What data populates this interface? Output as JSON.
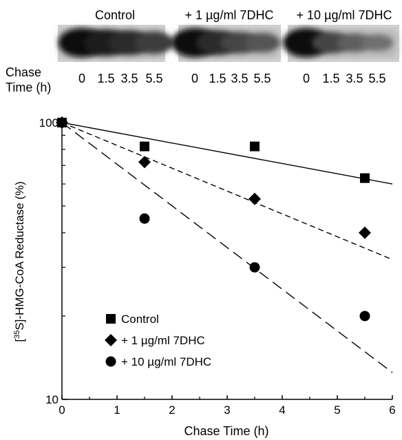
{
  "blot": {
    "groups": [
      {
        "label": "Control"
      },
      {
        "label": "+ 1 µg/ml 7DHC"
      },
      {
        "label": "+ 10 µg/ml 7DHC"
      }
    ],
    "row_label_line1": "Chase",
    "row_label_line2": "Time (h)",
    "lane_times": [
      "0",
      "1.5",
      "3.5",
      "5.5",
      "0",
      "1.5",
      "3.5",
      "5.5",
      "0",
      "1.5",
      "3.5",
      "5.5"
    ],
    "band_intensity": [
      1.0,
      0.85,
      0.75,
      0.6,
      1.0,
      0.75,
      0.55,
      0.42,
      1.0,
      0.55,
      0.35,
      0.22
    ]
  },
  "chart_data": {
    "type": "scatter",
    "title": "",
    "xlabel": "Chase Time (h)",
    "ylabel_prefix": "[",
    "ylabel_sup": "35",
    "ylabel_main": "S]-HMG-CoA Reductase (%)",
    "xlim": [
      0,
      6
    ],
    "ylim": [
      10,
      100
    ],
    "y_scale": "log",
    "x_ticks": [
      0,
      1,
      2,
      3,
      4,
      5,
      6
    ],
    "x_tick_labels": [
      "0",
      "1",
      "2",
      "3",
      "4",
      "5",
      "6"
    ],
    "y_tick_labels": [
      "100",
      "10"
    ],
    "legend_position": "bottom-left",
    "series": [
      {
        "name": "Control",
        "marker": "square",
        "x": [
          0,
          1.5,
          3.5,
          5.5
        ],
        "y": [
          100,
          82,
          82,
          63
        ],
        "fit": {
          "x": [
            0,
            6
          ],
          "y": [
            100,
            60
          ],
          "dash": "none"
        }
      },
      {
        "name": "+ 1 µg/ml 7DHC",
        "marker": "diamond",
        "x": [
          0,
          1.5,
          3.5,
          5.5
        ],
        "y": [
          100,
          72,
          53,
          40
        ],
        "fit": {
          "x": [
            0,
            6
          ],
          "y": [
            100,
            32
          ],
          "dash": "medium"
        }
      },
      {
        "name": "+ 10 µg/ml 7DHC",
        "marker": "circle",
        "x": [
          0,
          1.5,
          3.5,
          5.5
        ],
        "y": [
          100,
          45,
          30,
          20
        ],
        "fit": {
          "x": [
            0,
            6
          ],
          "y": [
            100,
            12.5
          ],
          "dash": "long"
        }
      }
    ]
  }
}
